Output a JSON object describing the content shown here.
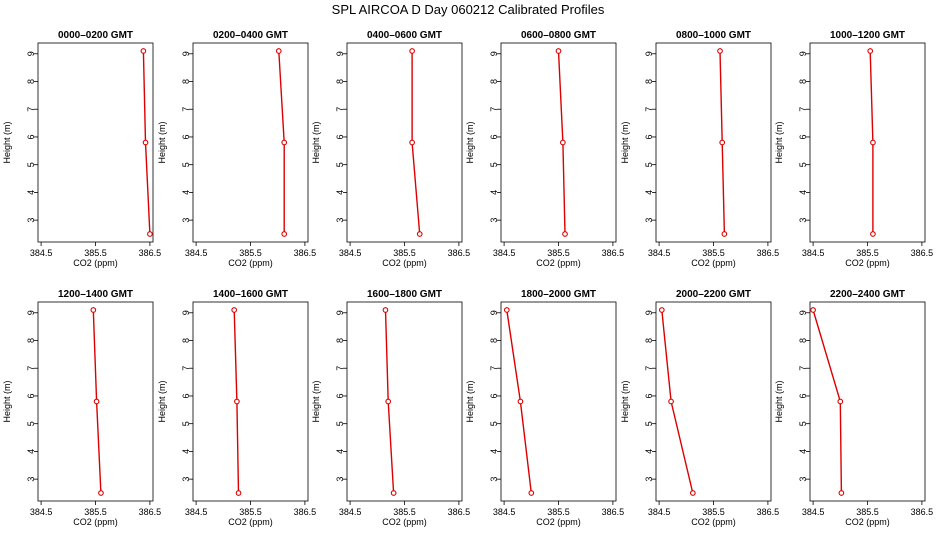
{
  "title": "SPL AIRCOA D  Day 060212  Calibrated Profiles",
  "colors": {
    "series": "#dd0000",
    "axis": "#000000"
  },
  "chart_data": [
    {
      "type": "line",
      "title": "0000–0200 GMT",
      "xlabel": "CO2 (ppm)",
      "ylabel": "Height (m)",
      "xlim": [
        384.5,
        386.5
      ],
      "ylim": [
        2.5,
        9.1
      ],
      "x_ticks": [
        "384.5",
        "385.5",
        "386.5"
      ],
      "y_ticks": [
        "3",
        "4",
        "5",
        "6",
        "7",
        "8",
        "9"
      ],
      "points": [
        {
          "x": 386.38,
          "y": 9.1
        },
        {
          "x": 386.42,
          "y": 5.8
        },
        {
          "x": 386.5,
          "y": 2.5
        }
      ]
    },
    {
      "type": "line",
      "title": "0200–0400 GMT",
      "xlabel": "CO2 (ppm)",
      "ylabel": "Height (m)",
      "xlim": [
        384.5,
        386.5
      ],
      "ylim": [
        2.5,
        9.1
      ],
      "x_ticks": [
        "384.5",
        "385.5",
        "386.5"
      ],
      "y_ticks": [
        "3",
        "4",
        "5",
        "6",
        "7",
        "8",
        "9"
      ],
      "points": [
        {
          "x": 386.02,
          "y": 9.1
        },
        {
          "x": 386.12,
          "y": 5.8
        },
        {
          "x": 386.12,
          "y": 2.5
        }
      ]
    },
    {
      "type": "line",
      "title": "0400–0600 GMT",
      "xlabel": "CO2 (ppm)",
      "ylabel": "Height (m)",
      "xlim": [
        384.5,
        386.5
      ],
      "ylim": [
        2.5,
        9.1
      ],
      "x_ticks": [
        "384.5",
        "385.5",
        "386.5"
      ],
      "y_ticks": [
        "3",
        "4",
        "5",
        "6",
        "7",
        "8",
        "9"
      ],
      "points": [
        {
          "x": 385.64,
          "y": 9.1
        },
        {
          "x": 385.64,
          "y": 5.8
        },
        {
          "x": 385.78,
          "y": 2.5
        }
      ]
    },
    {
      "type": "line",
      "title": "0600–0800 GMT",
      "xlabel": "CO2 (ppm)",
      "ylabel": "Height (m)",
      "xlim": [
        384.5,
        386.5
      ],
      "ylim": [
        2.5,
        9.1
      ],
      "x_ticks": [
        "384.5",
        "385.5",
        "386.5"
      ],
      "y_ticks": [
        "3",
        "4",
        "5",
        "6",
        "7",
        "8",
        "9"
      ],
      "points": [
        {
          "x": 385.5,
          "y": 9.1
        },
        {
          "x": 385.58,
          "y": 5.8
        },
        {
          "x": 385.62,
          "y": 2.5
        }
      ]
    },
    {
      "type": "line",
      "title": "0800–1000 GMT",
      "xlabel": "CO2 (ppm)",
      "ylabel": "Height (m)",
      "xlim": [
        384.5,
        386.5
      ],
      "ylim": [
        2.5,
        9.1
      ],
      "x_ticks": [
        "384.5",
        "385.5",
        "386.5"
      ],
      "y_ticks": [
        "3",
        "4",
        "5",
        "6",
        "7",
        "8",
        "9"
      ],
      "points": [
        {
          "x": 385.62,
          "y": 9.1
        },
        {
          "x": 385.66,
          "y": 5.8
        },
        {
          "x": 385.7,
          "y": 2.5
        }
      ]
    },
    {
      "type": "line",
      "title": "1000–1200 GMT",
      "xlabel": "CO2 (ppm)",
      "ylabel": "Height (m)",
      "xlim": [
        384.5,
        386.5
      ],
      "ylim": [
        2.5,
        9.1
      ],
      "x_ticks": [
        "384.5",
        "385.5",
        "386.5"
      ],
      "y_ticks": [
        "3",
        "4",
        "5",
        "6",
        "7",
        "8",
        "9"
      ],
      "points": [
        {
          "x": 385.55,
          "y": 9.1
        },
        {
          "x": 385.6,
          "y": 5.8
        },
        {
          "x": 385.6,
          "y": 2.5
        }
      ]
    },
    {
      "type": "line",
      "title": "1200–1400 GMT",
      "xlabel": "CO2 (ppm)",
      "ylabel": "Height (m)",
      "xlim": [
        384.5,
        386.5
      ],
      "ylim": [
        2.5,
        9.1
      ],
      "x_ticks": [
        "384.5",
        "385.5",
        "386.5"
      ],
      "y_ticks": [
        "3",
        "4",
        "5",
        "6",
        "7",
        "8",
        "9"
      ],
      "points": [
        {
          "x": 385.46,
          "y": 9.1
        },
        {
          "x": 385.52,
          "y": 5.8
        },
        {
          "x": 385.6,
          "y": 2.5
        }
      ]
    },
    {
      "type": "line",
      "title": "1400–1600 GMT",
      "xlabel": "CO2 (ppm)",
      "ylabel": "Height (m)",
      "xlim": [
        384.5,
        386.5
      ],
      "ylim": [
        2.5,
        9.1
      ],
      "x_ticks": [
        "384.5",
        "385.5",
        "386.5"
      ],
      "y_ticks": [
        "3",
        "4",
        "5",
        "6",
        "7",
        "8",
        "9"
      ],
      "points": [
        {
          "x": 385.2,
          "y": 9.1
        },
        {
          "x": 385.25,
          "y": 5.8
        },
        {
          "x": 385.28,
          "y": 2.5
        }
      ]
    },
    {
      "type": "line",
      "title": "1600–1800 GMT",
      "xlabel": "CO2 (ppm)",
      "ylabel": "Height (m)",
      "xlim": [
        384.5,
        386.5
      ],
      "ylim": [
        2.5,
        9.1
      ],
      "x_ticks": [
        "384.5",
        "385.5",
        "386.5"
      ],
      "y_ticks": [
        "3",
        "4",
        "5",
        "6",
        "7",
        "8",
        "9"
      ],
      "points": [
        {
          "x": 385.15,
          "y": 9.1
        },
        {
          "x": 385.2,
          "y": 5.8
        },
        {
          "x": 385.3,
          "y": 2.5
        }
      ]
    },
    {
      "type": "line",
      "title": "1800–2000 GMT",
      "xlabel": "CO2 (ppm)",
      "ylabel": "Height (m)",
      "xlim": [
        384.5,
        386.5
      ],
      "ylim": [
        2.5,
        9.1
      ],
      "x_ticks": [
        "384.5",
        "385.5",
        "386.5"
      ],
      "y_ticks": [
        "3",
        "4",
        "5",
        "6",
        "7",
        "8",
        "9"
      ],
      "points": [
        {
          "x": 384.55,
          "y": 9.1
        },
        {
          "x": 384.8,
          "y": 5.8
        },
        {
          "x": 385.0,
          "y": 2.5
        }
      ]
    },
    {
      "type": "line",
      "title": "2000–2200 GMT",
      "xlabel": "CO2 (ppm)",
      "ylabel": "Height (m)",
      "xlim": [
        384.5,
        386.5
      ],
      "ylim": [
        2.5,
        9.1
      ],
      "x_ticks": [
        "384.5",
        "385.5",
        "386.5"
      ],
      "y_ticks": [
        "3",
        "4",
        "5",
        "6",
        "7",
        "8",
        "9"
      ],
      "points": [
        {
          "x": 384.55,
          "y": 9.1
        },
        {
          "x": 384.72,
          "y": 5.8
        },
        {
          "x": 385.12,
          "y": 2.5
        }
      ]
    },
    {
      "type": "line",
      "title": "2200–2400 GMT",
      "xlabel": "CO2 (ppm)",
      "ylabel": "Height (m)",
      "xlim": [
        384.5,
        386.5
      ],
      "ylim": [
        2.5,
        9.1
      ],
      "x_ticks": [
        "384.5",
        "385.5",
        "386.5"
      ],
      "y_ticks": [
        "3",
        "4",
        "5",
        "6",
        "7",
        "8",
        "9"
      ],
      "points": [
        {
          "x": 384.5,
          "y": 9.1
        },
        {
          "x": 385.0,
          "y": 5.8
        },
        {
          "x": 385.02,
          "y": 2.5
        }
      ]
    }
  ]
}
